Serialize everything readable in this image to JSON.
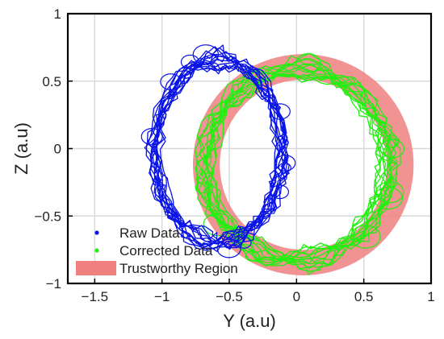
{
  "chart_data": {
    "type": "scatter",
    "title": "",
    "xlabel": "Y (a.u)",
    "ylabel": "Z (a.u)",
    "xlim": [
      -1.7,
      1.0
    ],
    "ylim": [
      -1.0,
      1.0
    ],
    "xticks": [
      -1.5,
      -1,
      -0.5,
      0,
      0.5,
      1
    ],
    "xtick_labels": [
      "−1.5",
      "−1",
      "−0.5",
      "0",
      "0.5",
      "1"
    ],
    "yticks": [
      -1,
      -0.5,
      0,
      0.5,
      1
    ],
    "ytick_labels": [
      "−1",
      "−0.5",
      "0",
      "0.5",
      "1"
    ],
    "grid": true,
    "legend_position": "bottom-left",
    "series": [
      {
        "name": "Raw Data",
        "color": "#0a14e6",
        "marker": "dot-line",
        "center": [
          -0.58,
          -0.02
        ],
        "radius_y": 0.5,
        "radius_z": 0.73
      },
      {
        "name": "Corrected Data",
        "color": "#22ee10",
        "marker": "dot-line",
        "center": [
          0.0,
          -0.12
        ],
        "radius_y": 0.72,
        "radius_z": 0.76
      }
    ],
    "regions": [
      {
        "name": "Trustworthy Region",
        "color": "#f08080",
        "shape": "ring",
        "center": [
          0.05,
          -0.12
        ],
        "inner_radius_y": 0.62,
        "outer_radius_y": 0.82,
        "inner_radius_z": 0.63,
        "outer_radius_z": 0.82
      }
    ]
  }
}
